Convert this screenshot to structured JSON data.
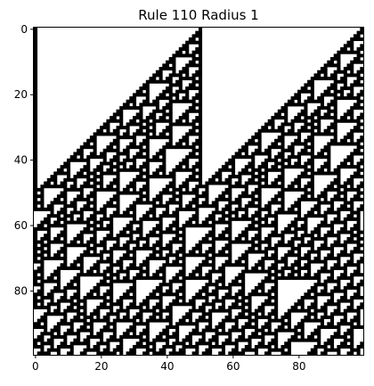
{
  "chart_data": {
    "type": "heatmap",
    "title": "Rule 110 Radius 1",
    "rule": 110,
    "radius": 1,
    "width": 100,
    "steps": 100,
    "initial_state": {
      "ones": [
        0,
        50,
        99
      ]
    },
    "boundary": "wrap",
    "colors": {
      "one": "#000000",
      "zero": "#ffffff",
      "axes": "#000000"
    },
    "x_ticks": [
      0,
      20,
      40,
      60,
      80
    ],
    "y_ticks": [
      0,
      20,
      40,
      60,
      80
    ],
    "xlim": [
      -0.5,
      99.5
    ],
    "ylim": [
      99.5,
      -0.5
    ],
    "grid": false
  }
}
